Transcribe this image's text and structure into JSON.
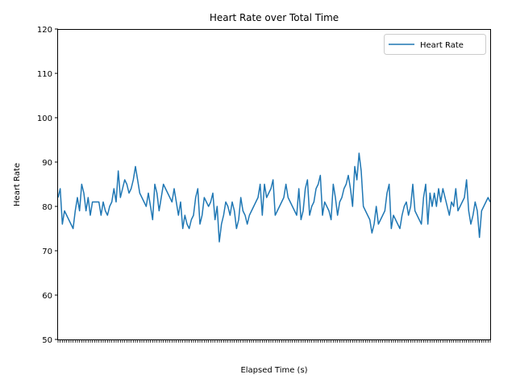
{
  "chart_data": {
    "type": "line",
    "title": "Heart Rate over Total Time",
    "xlabel": "Elapsed Time (s)",
    "ylabel": "Heart Rate",
    "ylim": [
      50,
      120
    ],
    "yticks": [
      "50",
      "60",
      "70",
      "80",
      "90",
      "100",
      "110",
      "120"
    ],
    "grid": false,
    "legend": {
      "position": "top-right",
      "entries": [
        "Heart Rate"
      ]
    },
    "colors": {
      "series": "#1f77b4",
      "axis": "#000000",
      "background": "#ffffff"
    },
    "series": [
      {
        "name": "Heart Rate",
        "values": [
          82,
          84,
          76,
          79,
          78,
          77,
          76,
          75,
          79,
          82,
          79,
          85,
          83,
          79,
          82,
          78,
          81,
          81,
          81,
          81,
          78,
          81,
          79,
          78,
          80,
          81,
          84,
          81,
          88,
          82,
          84,
          86,
          85,
          83,
          84,
          86,
          89,
          86,
          83,
          82,
          81,
          80,
          83,
          80,
          77,
          85,
          83,
          79,
          82,
          85,
          84,
          83,
          82,
          81,
          84,
          81,
          78,
          81,
          75,
          78,
          76,
          75,
          77,
          78,
          82,
          84,
          76,
          78,
          82,
          81,
          80,
          81,
          83,
          77,
          80,
          72,
          76,
          78,
          81,
          80,
          78,
          81,
          79,
          75,
          77,
          82,
          79,
          78,
          76,
          78,
          79,
          80,
          81,
          82,
          85,
          78,
          85,
          82,
          83,
          84,
          86,
          78,
          79,
          80,
          81,
          82,
          85,
          82,
          81,
          80,
          79,
          78,
          84,
          77,
          79,
          84,
          86,
          78,
          80,
          81,
          84,
          85,
          87,
          78,
          81,
          80,
          79,
          77,
          85,
          82,
          78,
          81,
          82,
          84,
          85,
          87,
          84,
          80,
          89,
          86,
          92,
          88,
          80,
          79,
          78,
          77,
          74,
          76,
          80,
          76,
          77,
          78,
          79,
          83,
          85,
          75,
          78,
          77,
          76,
          75,
          78,
          80,
          81,
          78,
          80,
          85,
          79,
          78,
          77,
          76,
          82,
          85,
          76,
          83,
          80,
          83,
          80,
          84,
          81,
          84,
          82,
          80,
          78,
          81,
          80,
          84,
          79,
          80,
          81,
          82,
          86,
          79,
          76,
          78,
          81,
          79,
          73,
          79,
          80,
          81,
          82,
          81
        ]
      }
    ]
  }
}
